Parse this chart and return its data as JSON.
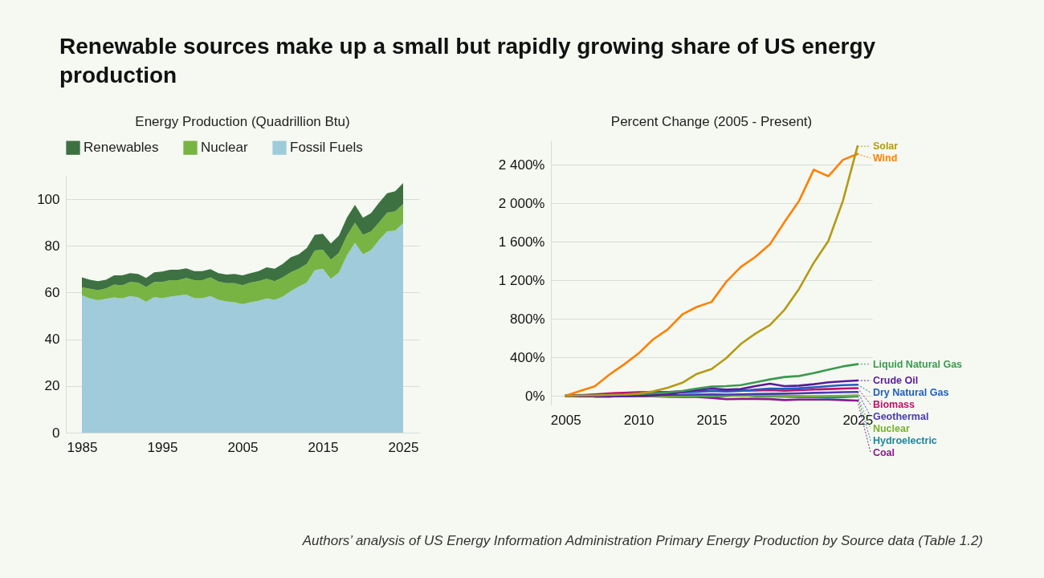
{
  "chart_data": [
    {
      "type": "area",
      "title": "Renewable sources make up a small but rapidly growing share of US energy production",
      "subtitle": "Energy Production (Quadrillion Btu)",
      "stacked": true,
      "legend": "top",
      "grid": "y",
      "x": [
        1985,
        1986,
        1987,
        1988,
        1989,
        1990,
        1991,
        1992,
        1993,
        1994,
        1995,
        1996,
        1997,
        1998,
        1999,
        2000,
        2001,
        2002,
        2003,
        2004,
        2005,
        2006,
        2007,
        2008,
        2009,
        2010,
        2011,
        2012,
        2013,
        2014,
        2015,
        2016,
        2017,
        2018,
        2019,
        2020,
        2021,
        2022,
        2023,
        2024,
        2025
      ],
      "series": [
        {
          "name": "Fossil Fuels",
          "color": "#9fcbda",
          "values": [
            58.9,
            57.5,
            56.7,
            57.3,
            57.9,
            57.5,
            58.5,
            57.9,
            56.0,
            58.1,
            57.6,
            58.3,
            58.7,
            59.1,
            57.6,
            57.6,
            58.5,
            56.9,
            56.2,
            55.9,
            55.0,
            55.9,
            56.5,
            57.5,
            56.9,
            58.3,
            60.6,
            62.6,
            64.3,
            69.6,
            70.2,
            65.8,
            68.6,
            76.0,
            81.3,
            76.4,
            78.2,
            82.5,
            86.2,
            86.5,
            89.7
          ]
        },
        {
          "name": "Nuclear",
          "color": "#78b443",
          "values": [
            3.3,
            4.1,
            4.3,
            4.5,
            5.5,
            5.6,
            6.0,
            6.4,
            6.4,
            6.4,
            6.9,
            7.0,
            6.6,
            7.2,
            7.7,
            7.7,
            8.0,
            7.8,
            7.8,
            8.1,
            8.2,
            8.4,
            8.4,
            8.4,
            8.0,
            8.2,
            8.1,
            7.6,
            8.0,
            8.4,
            8.2,
            8.3,
            8.4,
            8.4,
            8.6,
            8.3,
            8.0,
            7.6,
            8.0,
            8.3,
            8.2
          ]
        },
        {
          "name": "Renewables",
          "color": "#3d7142",
          "values": [
            4.3,
            3.9,
            3.9,
            3.7,
            4.0,
            4.3,
            3.8,
            3.7,
            3.9,
            4.2,
            4.5,
            4.5,
            4.5,
            4.1,
            3.9,
            3.9,
            3.5,
            3.6,
            3.7,
            4.0,
            4.2,
            4.0,
            4.3,
            4.9,
            5.3,
            5.8,
            6.4,
            6.2,
            6.8,
            6.7,
            6.8,
            6.9,
            7.4,
            7.7,
            7.6,
            7.3,
            7.8,
            8.4,
            8.3,
            8.6,
            9.0
          ]
        }
      ],
      "xlim": [
        1983,
        2027
      ],
      "xticks": [
        1985,
        1995,
        2005,
        2015,
        2025
      ],
      "ylim": [
        0,
        110
      ],
      "yticks": [
        0,
        20,
        40,
        60,
        80,
        100
      ]
    },
    {
      "type": "line",
      "title": "Percent Change (2005 - Present)",
      "grid": "y",
      "legend": "right",
      "x": [
        2005,
        2006,
        2007,
        2008,
        2009,
        2010,
        2011,
        2012,
        2013,
        2014,
        2015,
        2016,
        2017,
        2018,
        2019,
        2020,
        2021,
        2022,
        2023,
        2024,
        2025
      ],
      "series": [
        {
          "name": "Solar",
          "color": "#b59a14",
          "values": [
            0,
            2,
            4,
            8,
            12,
            22,
            45,
            84,
            135,
            228,
            277,
            390,
            537,
            645,
            735,
            893,
            1111,
            1380,
            1606,
            2024,
            2590
          ]
        },
        {
          "name": "Wind",
          "color": "#ff8000",
          "values": [
            0,
            50,
            98,
            219,
            324,
            439,
            585,
            689,
            844,
            923,
            974,
            1182,
            1337,
            1442,
            1572,
            1804,
            2024,
            2347,
            2279,
            2449,
            2511
          ]
        },
        {
          "name": "Liquid Natural Gas",
          "color": "#3a9a4f",
          "values": [
            null,
            null,
            null,
            null,
            12,
            18,
            25,
            35,
            50,
            75,
            95,
            100,
            110,
            140,
            170,
            195,
            205,
            235,
            270,
            305,
            328
          ]
        },
        {
          "name": "Crude Oil",
          "color": "#5a1a9a",
          "values": [
            0,
            -5,
            -5,
            -7,
            -2,
            0,
            5,
            15,
            40,
            60,
            75,
            65,
            70,
            100,
            125,
            100,
            105,
            120,
            140,
            150,
            158
          ]
        },
        {
          "name": "Dry Natural Gas",
          "color": "#1f5fbf",
          "values": [
            0,
            3,
            7,
            12,
            15,
            20,
            28,
            35,
            35,
            40,
            50,
            45,
            50,
            65,
            75,
            72,
            78,
            88,
            100,
            110,
            115
          ]
        },
        {
          "name": "Biomass",
          "color": "#c0106a",
          "values": [
            0,
            5,
            15,
            25,
            30,
            38,
            40,
            40,
            45,
            48,
            50,
            50,
            52,
            55,
            58,
            52,
            58,
            65,
            70,
            75,
            79
          ]
        },
        {
          "name": "Geothermal",
          "color": "#4a3ab0",
          "values": [
            0,
            2,
            3,
            3,
            5,
            7,
            8,
            8,
            10,
            12,
            14,
            12,
            15,
            18,
            20,
            22,
            25,
            30,
            33,
            37,
            40
          ]
        },
        {
          "name": "Nuclear",
          "color": "#79b030",
          "values": [
            null,
            null,
            3,
            3,
            2,
            0,
            -3,
            -5,
            -2,
            0,
            0,
            1,
            0,
            1,
            1,
            -3,
            -3,
            -4,
            -2,
            0,
            3
          ]
        },
        {
          "name": "Hydroelectric",
          "color": "#1f85a0",
          "values": [
            0,
            7,
            -9,
            -7,
            -2,
            -5,
            19,
            -8,
            -5,
            -5,
            -10,
            -3,
            10,
            -5,
            -5,
            -9,
            -15,
            -12,
            -20,
            -15,
            -5
          ]
        },
        {
          "name": "Coal",
          "color": "#8a1a8a",
          "values": [
            0,
            2,
            0,
            2,
            -5,
            -5,
            -5,
            -10,
            -12,
            -12,
            -22,
            -35,
            -32,
            -32,
            -34,
            -45,
            -40,
            -39,
            -40,
            -45,
            -50
          ]
        }
      ],
      "xlim": [
        2004,
        2026
      ],
      "xticks": [
        2005,
        2010,
        2015,
        2020,
        2025
      ],
      "ylim": [
        -100,
        2650
      ],
      "yticks": [
        {
          "value": 0,
          "label": "0%"
        },
        {
          "value": 400,
          "label": "400%"
        },
        {
          "value": 800,
          "label": "800%"
        },
        {
          "value": 1200,
          "label": "1 200%"
        },
        {
          "value": 1600,
          "label": "1 600%"
        },
        {
          "value": 2000,
          "label": "2 000%"
        },
        {
          "value": 2400,
          "label": "2 400%"
        }
      ],
      "annotations": [
        "Authors’ analysis of US Energy Information Administration Primary Energy Production by Source data (Table 1.2)"
      ]
    }
  ]
}
